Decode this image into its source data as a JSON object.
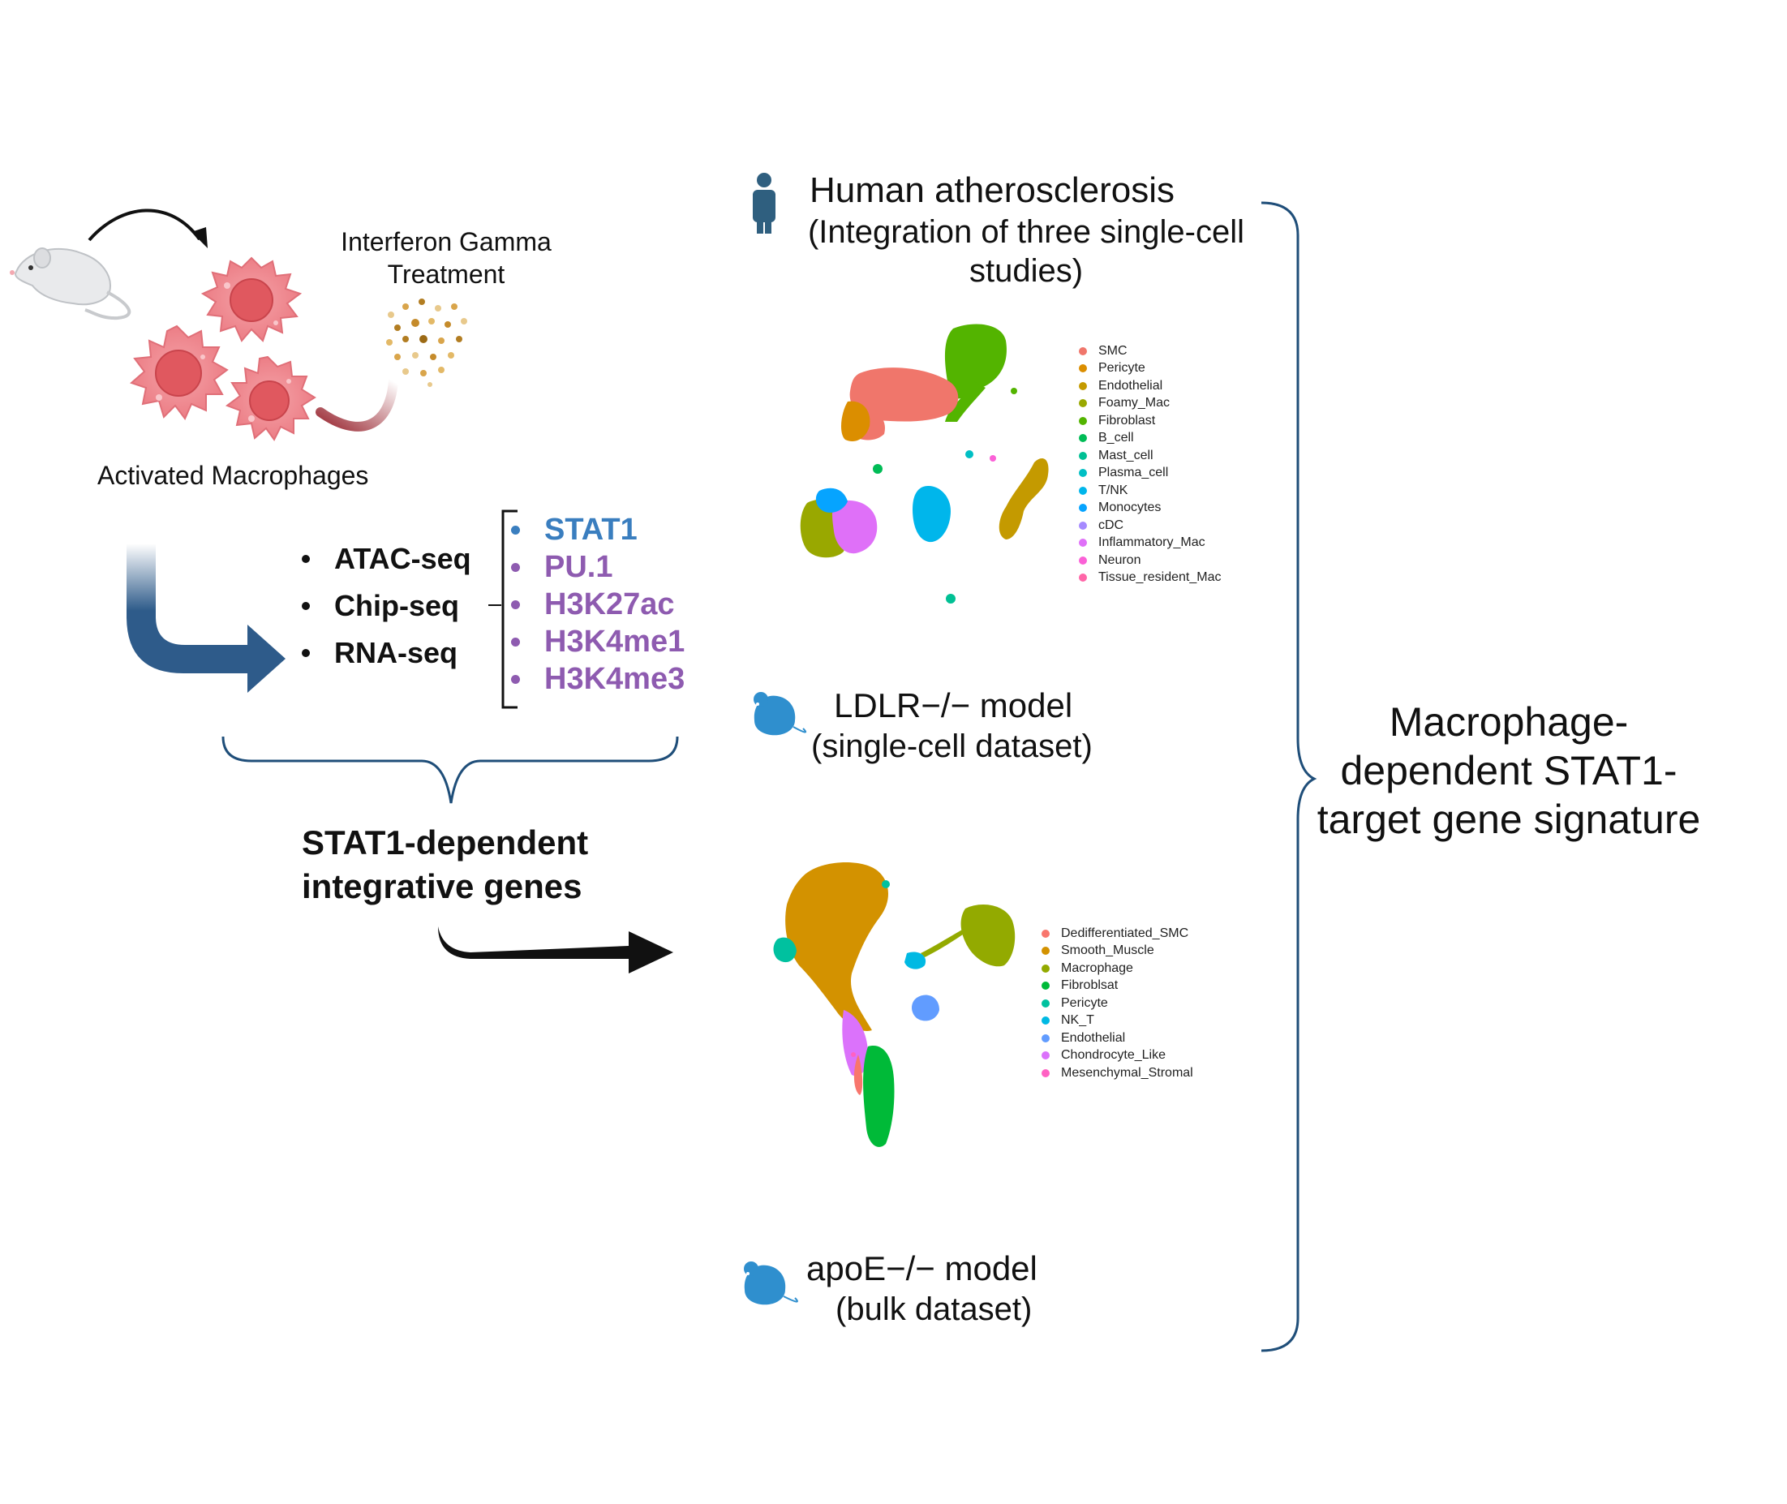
{
  "left": {
    "treatment_label": [
      "Interferon Gamma",
      "Treatment"
    ],
    "macrophage_label": "Activated Macrophages",
    "methods": [
      "ATAC-seq",
      "Chip-seq",
      "RNA-seq"
    ],
    "marks": [
      {
        "label": "STAT1",
        "color": "#3a7ebf"
      },
      {
        "label": "PU.1",
        "color": "#8e5bb0"
      },
      {
        "label": "H3K27ac",
        "color": "#8e5bb0"
      },
      {
        "label": "H3K4me1",
        "color": "#8e5bb0"
      },
      {
        "label": "H3K4me3",
        "color": "#8e5bb0"
      }
    ],
    "result_label": [
      "STAT1-dependent",
      "integrative genes"
    ]
  },
  "right": {
    "human": {
      "title": "Human atherosclerosis",
      "subtitle": [
        "(Integration of three single-cell",
        "studies)"
      ],
      "legend": [
        {
          "label": "SMC",
          "color": "#f0766b"
        },
        {
          "label": "Pericyte",
          "color": "#db8e00"
        },
        {
          "label": "Endothelial",
          "color": "#c49a00"
        },
        {
          "label": "Foamy_Mac",
          "color": "#99a800"
        },
        {
          "label": "Fibroblast",
          "color": "#53b400"
        },
        {
          "label": "B_cell",
          "color": "#00bc56"
        },
        {
          "label": "Mast_cell",
          "color": "#00c094"
        },
        {
          "label": "Plasma_cell",
          "color": "#00bfc4"
        },
        {
          "label": "T/NK",
          "color": "#00b6eb"
        },
        {
          "label": "Monocytes",
          "color": "#06a4ff"
        },
        {
          "label": "cDC",
          "color": "#a58aff"
        },
        {
          "label": "Inflammatory_Mac",
          "color": "#df70f8"
        },
        {
          "label": "Neuron",
          "color": "#fb61d7"
        },
        {
          "label": "Tissue_resident_Mac",
          "color": "#ff66a8"
        }
      ]
    },
    "ldlr": {
      "title": "LDLR−/− model",
      "subtitle": "(single-cell dataset)"
    },
    "mouse_legend": [
      {
        "label": "Dedifferentiated_SMC",
        "color": "#f8766d"
      },
      {
        "label": "Smooth_Muscle",
        "color": "#d39200"
      },
      {
        "label": "Macrophage",
        "color": "#93aa00"
      },
      {
        "label": "Fibroblsat",
        "color": "#00ba38"
      },
      {
        "label": "Pericyte",
        "color": "#00c19f"
      },
      {
        "label": "NK_T",
        "color": "#00b9e3"
      },
      {
        "label": "Endothelial",
        "color": "#619cff"
      },
      {
        "label": "Chondrocyte_Like",
        "color": "#db72fb"
      },
      {
        "label": "Mesenchymal_Stromal",
        "color": "#ff61c3"
      }
    ],
    "apoe": {
      "title": "apoE−/− model",
      "subtitle": "(bulk dataset)"
    },
    "signature": [
      "Macrophage-",
      "dependent STAT1-",
      "target gene signature"
    ]
  },
  "colors": {
    "bracket_blue": "#1f4e79",
    "arrow_blue": "#2e5b8a",
    "icon_blue": "#2f8fce",
    "human_icon": "#2f5f7f",
    "cell_pink": "#f08f96",
    "cell_nucleus": "#e0585f"
  }
}
